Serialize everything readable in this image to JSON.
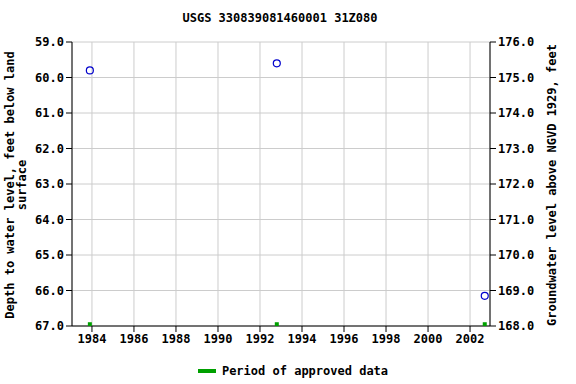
{
  "chart_data": {
    "type": "scatter",
    "title": "USGS 330839081460001 31Z080",
    "x_label": "",
    "y_label": "Depth to water level, feet below land\nsurface",
    "y2_label": "Groundwater level above NGVD 1929, feet",
    "xlim": [
      1983.05,
      2002.95
    ],
    "xticks": [
      1984,
      1986,
      1988,
      1990,
      1992,
      1994,
      1996,
      1998,
      2000,
      2002
    ],
    "ylim": [
      59,
      67
    ],
    "yticks": [
      {
        "value": 59,
        "label": "59.0"
      },
      {
        "value": 60,
        "label": "60.0"
      },
      {
        "value": 61,
        "label": "61.0"
      },
      {
        "value": 62,
        "label": "62.0"
      },
      {
        "value": 63,
        "label": "63.0"
      },
      {
        "value": 64,
        "label": "64.0"
      },
      {
        "value": 65,
        "label": "65.0"
      },
      {
        "value": 66,
        "label": "66.0"
      },
      {
        "value": 67,
        "label": "67.0"
      }
    ],
    "y2lim": [
      168,
      176
    ],
    "y2ticks": [
      {
        "value": 168,
        "label": "168.0"
      },
      {
        "value": 169,
        "label": "169.0"
      },
      {
        "value": 170,
        "label": "170.0"
      },
      {
        "value": 171,
        "label": "171.0"
      },
      {
        "value": 172,
        "label": "172.0"
      },
      {
        "value": 173,
        "label": "173.0"
      },
      {
        "value": 174,
        "label": "174.0"
      },
      {
        "value": 175,
        "label": "175.0"
      },
      {
        "value": 176,
        "label": "176.0"
      }
    ],
    "grid": true,
    "legend": "bottom",
    "series": [
      {
        "color": "#0000cc",
        "marker": "circle",
        "x": [
          1983.9,
          1992.8,
          2002.7
        ],
        "values": [
          59.8,
          59.6,
          66.15
        ]
      },
      {
        "name": "Period of approved data",
        "color": "#00a000",
        "marker": "square",
        "x": [
          1983.9,
          1992.8,
          2002.7
        ],
        "values": [
          66.95,
          66.95,
          66.95
        ]
      }
    ]
  }
}
